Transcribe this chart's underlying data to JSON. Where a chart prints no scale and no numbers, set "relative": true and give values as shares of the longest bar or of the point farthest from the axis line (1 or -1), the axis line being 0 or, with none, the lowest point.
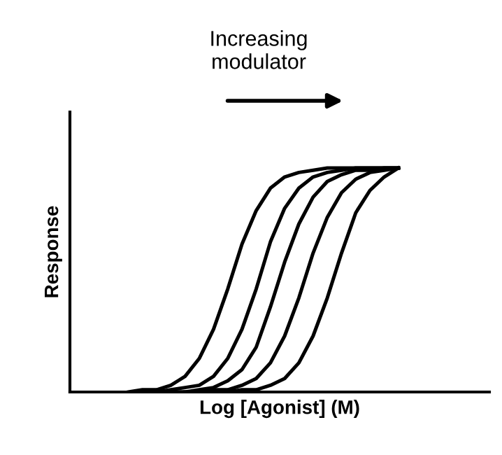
{
  "chart_data": {
    "type": "line",
    "relative": true,
    "xlabel": "Log [Agonist] (M)",
    "ylabel": "Response",
    "annotations": [
      "Increasing modulator"
    ],
    "categories": [
      null,
      null,
      null,
      null,
      null,
      null,
      null,
      null,
      null,
      null,
      null,
      null,
      null,
      null,
      null,
      null,
      null,
      null,
      null,
      null
    ],
    "marker": "none",
    "line_style": "solid",
    "series": [
      {
        "color": "#000000",
        "values": [
          0,
          0.01,
          0.01,
          0.03,
          0.07,
          0.15,
          0.28,
          0.46,
          0.66,
          0.81,
          0.91,
          0.96,
          0.98,
          0.99,
          1,
          1,
          1,
          1,
          1,
          1
        ]
      },
      {
        "color": "#000000",
        "values": [
          null,
          0,
          0,
          0.01,
          0.02,
          0.03,
          0.07,
          0.15,
          0.28,
          0.46,
          0.67,
          0.82,
          0.91,
          0.96,
          0.98,
          0.99,
          1,
          1,
          1,
          1
        ]
      },
      {
        "color": "#000000",
        "values": [
          null,
          null,
          0,
          0,
          0,
          0.01,
          0.02,
          0.05,
          0.1,
          0.2,
          0.38,
          0.58,
          0.75,
          0.87,
          0.94,
          0.97,
          0.99,
          0.99,
          1,
          1
        ]
      },
      {
        "color": "#000000",
        "values": [
          null,
          null,
          null,
          0,
          0,
          0,
          0.01,
          0.01,
          0.03,
          0.06,
          0.13,
          0.25,
          0.42,
          0.62,
          0.78,
          0.89,
          0.95,
          0.98,
          0.99,
          1
        ]
      },
      {
        "color": "#000000",
        "values": [
          null,
          null,
          null,
          null,
          0,
          0,
          0,
          0,
          0.01,
          0.01,
          0.03,
          0.06,
          0.13,
          0.25,
          0.42,
          0.62,
          0.8,
          0.9,
          0.96,
          1
        ]
      }
    ]
  }
}
